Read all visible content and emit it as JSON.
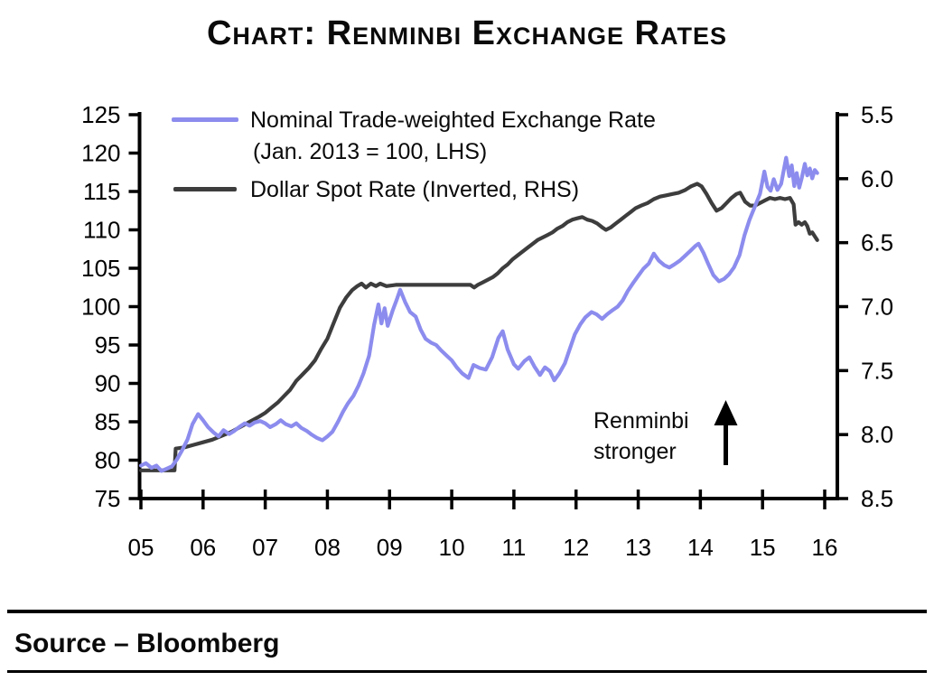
{
  "title": "Chart: Renminbi Exchange Rates",
  "legend": {
    "items": [
      {
        "label": "Nominal Trade-weighted Exchange Rate",
        "sublabel": "(Jan. 2013 = 100,  LHS)",
        "color": "#8c8cee"
      },
      {
        "label": "Dollar Spot Rate (Inverted, RHS)",
        "color": "#3d3d3d"
      }
    ]
  },
  "annotation": {
    "line1": "Renminbi",
    "line2": "stronger",
    "arrow": "up-arrow"
  },
  "source_label": "Source – Bloomberg",
  "chart_data": {
    "type": "line",
    "title": "Chart: Renminbi Exchange Rates",
    "x_axis": {
      "tick_labels": [
        "05",
        "06",
        "07",
        "08",
        "09",
        "10",
        "11",
        "12",
        "13",
        "14",
        "15",
        "16"
      ],
      "tick_values": [
        5,
        6,
        7,
        8,
        9,
        10,
        11,
        12,
        13,
        14,
        15,
        16
      ],
      "range": [
        5,
        16.2
      ]
    },
    "left_axis": {
      "tick_labels": [
        "125",
        "120",
        "115",
        "110",
        "105",
        "100",
        "95",
        "90",
        "85",
        "80",
        "75"
      ],
      "tick_values": [
        125,
        120,
        115,
        110,
        105,
        100,
        95,
        90,
        85,
        80,
        75
      ],
      "range": [
        75,
        125
      ]
    },
    "right_axis": {
      "tick_labels": [
        "5.5",
        "6.0",
        "6.5",
        "7.0",
        "7.5",
        "8.0",
        "8.5"
      ],
      "tick_values": [
        5.5,
        6.0,
        6.5,
        7.0,
        7.5,
        8.0,
        8.5
      ],
      "range": [
        5.5,
        8.5
      ],
      "inverted": true
    },
    "grid": false,
    "legend_position": "top-left-inside",
    "series": [
      {
        "name": "Dollar Spot Rate (Inverted, RHS)",
        "axis": "right",
        "color": "#3d3d3d",
        "points": [
          [
            5.0,
            8.28
          ],
          [
            5.54,
            8.28
          ],
          [
            5.56,
            8.11
          ],
          [
            5.7,
            8.1
          ],
          [
            5.85,
            8.08
          ],
          [
            6.0,
            8.06
          ],
          [
            6.15,
            8.04
          ],
          [
            6.3,
            8.01
          ],
          [
            6.45,
            7.98
          ],
          [
            6.6,
            7.94
          ],
          [
            6.75,
            7.9
          ],
          [
            6.9,
            7.86
          ],
          [
            7.0,
            7.83
          ],
          [
            7.1,
            7.79
          ],
          [
            7.2,
            7.75
          ],
          [
            7.3,
            7.7
          ],
          [
            7.4,
            7.65
          ],
          [
            7.5,
            7.58
          ],
          [
            7.6,
            7.53
          ],
          [
            7.7,
            7.48
          ],
          [
            7.8,
            7.42
          ],
          [
            7.9,
            7.33
          ],
          [
            8.0,
            7.25
          ],
          [
            8.1,
            7.13
          ],
          [
            8.2,
            7.01
          ],
          [
            8.3,
            6.93
          ],
          [
            8.4,
            6.87
          ],
          [
            8.48,
            6.84
          ],
          [
            8.55,
            6.82
          ],
          [
            8.62,
            6.85
          ],
          [
            8.7,
            6.82
          ],
          [
            8.78,
            6.84
          ],
          [
            8.85,
            6.82
          ],
          [
            8.95,
            6.84
          ],
          [
            9.1,
            6.83
          ],
          [
            9.5,
            6.83
          ],
          [
            10.0,
            6.83
          ],
          [
            10.3,
            6.83
          ],
          [
            10.36,
            6.85
          ],
          [
            10.42,
            6.83
          ],
          [
            10.5,
            6.81
          ],
          [
            10.58,
            6.79
          ],
          [
            10.66,
            6.77
          ],
          [
            10.74,
            6.74
          ],
          [
            10.82,
            6.7
          ],
          [
            10.9,
            6.67
          ],
          [
            10.98,
            6.63
          ],
          [
            11.06,
            6.6
          ],
          [
            11.14,
            6.57
          ],
          [
            11.22,
            6.54
          ],
          [
            11.3,
            6.51
          ],
          [
            11.38,
            6.48
          ],
          [
            11.46,
            6.46
          ],
          [
            11.54,
            6.44
          ],
          [
            11.62,
            6.42
          ],
          [
            11.7,
            6.39
          ],
          [
            11.78,
            6.37
          ],
          [
            11.86,
            6.34
          ],
          [
            11.94,
            6.32
          ],
          [
            12.02,
            6.31
          ],
          [
            12.1,
            6.3
          ],
          [
            12.18,
            6.32
          ],
          [
            12.26,
            6.33
          ],
          [
            12.34,
            6.35
          ],
          [
            12.42,
            6.38
          ],
          [
            12.48,
            6.4
          ],
          [
            12.56,
            6.38
          ],
          [
            12.64,
            6.35
          ],
          [
            12.72,
            6.32
          ],
          [
            12.8,
            6.29
          ],
          [
            12.88,
            6.26
          ],
          [
            12.96,
            6.23
          ],
          [
            13.05,
            6.21
          ],
          [
            13.15,
            6.19
          ],
          [
            13.25,
            6.16
          ],
          [
            13.35,
            6.14
          ],
          [
            13.45,
            6.13
          ],
          [
            13.55,
            6.12
          ],
          [
            13.65,
            6.11
          ],
          [
            13.75,
            6.09
          ],
          [
            13.85,
            6.06
          ],
          [
            13.95,
            6.04
          ],
          [
            14.02,
            6.06
          ],
          [
            14.1,
            6.12
          ],
          [
            14.18,
            6.19
          ],
          [
            14.26,
            6.25
          ],
          [
            14.34,
            6.23
          ],
          [
            14.42,
            6.19
          ],
          [
            14.5,
            6.15
          ],
          [
            14.58,
            6.12
          ],
          [
            14.64,
            6.11
          ],
          [
            14.72,
            6.18
          ],
          [
            14.8,
            6.21
          ],
          [
            14.88,
            6.21
          ],
          [
            14.96,
            6.19
          ],
          [
            15.04,
            6.17
          ],
          [
            15.12,
            6.15
          ],
          [
            15.2,
            6.16
          ],
          [
            15.28,
            6.15
          ],
          [
            15.36,
            6.16
          ],
          [
            15.44,
            6.15
          ],
          [
            15.5,
            6.2
          ],
          [
            15.53,
            6.36
          ],
          [
            15.58,
            6.34
          ],
          [
            15.63,
            6.36
          ],
          [
            15.68,
            6.34
          ],
          [
            15.72,
            6.37
          ],
          [
            15.76,
            6.43
          ],
          [
            15.8,
            6.42
          ],
          [
            15.84,
            6.45
          ],
          [
            15.88,
            6.48
          ]
        ]
      },
      {
        "name": "Nominal Trade-weighted Exchange Rate (Jan. 2013 = 100, LHS)",
        "axis": "left",
        "color": "#8c8cee",
        "points": [
          [
            5.0,
            79.3
          ],
          [
            5.08,
            79.6
          ],
          [
            5.17,
            79.0
          ],
          [
            5.25,
            79.3
          ],
          [
            5.33,
            78.6
          ],
          [
            5.42,
            78.9
          ],
          [
            5.5,
            79.2
          ],
          [
            5.58,
            80.1
          ],
          [
            5.67,
            81.4
          ],
          [
            5.75,
            82.7
          ],
          [
            5.83,
            84.7
          ],
          [
            5.92,
            86.0
          ],
          [
            6.0,
            85.2
          ],
          [
            6.08,
            84.3
          ],
          [
            6.17,
            83.6
          ],
          [
            6.25,
            83.1
          ],
          [
            6.33,
            83.9
          ],
          [
            6.42,
            83.4
          ],
          [
            6.5,
            83.8
          ],
          [
            6.58,
            84.3
          ],
          [
            6.67,
            84.8
          ],
          [
            6.75,
            84.5
          ],
          [
            6.83,
            84.9
          ],
          [
            6.92,
            85.1
          ],
          [
            7.0,
            84.8
          ],
          [
            7.08,
            84.3
          ],
          [
            7.17,
            84.7
          ],
          [
            7.25,
            85.2
          ],
          [
            7.33,
            84.7
          ],
          [
            7.42,
            84.4
          ],
          [
            7.5,
            84.8
          ],
          [
            7.58,
            84.2
          ],
          [
            7.67,
            83.8
          ],
          [
            7.75,
            83.3
          ],
          [
            7.83,
            82.9
          ],
          [
            7.92,
            82.6
          ],
          [
            8.0,
            83.1
          ],
          [
            8.08,
            83.7
          ],
          [
            8.17,
            85.0
          ],
          [
            8.25,
            86.3
          ],
          [
            8.33,
            87.4
          ],
          [
            8.42,
            88.4
          ],
          [
            8.5,
            89.7
          ],
          [
            8.58,
            91.3
          ],
          [
            8.67,
            93.6
          ],
          [
            8.75,
            97.6
          ],
          [
            8.82,
            100.3
          ],
          [
            8.87,
            97.8
          ],
          [
            8.92,
            99.8
          ],
          [
            8.97,
            97.5
          ],
          [
            9.05,
            99.5
          ],
          [
            9.12,
            101.0
          ],
          [
            9.17,
            102.2
          ],
          [
            9.25,
            100.6
          ],
          [
            9.33,
            99.3
          ],
          [
            9.42,
            98.7
          ],
          [
            9.5,
            97.0
          ],
          [
            9.58,
            95.8
          ],
          [
            9.67,
            95.3
          ],
          [
            9.75,
            95.0
          ],
          [
            9.83,
            94.3
          ],
          [
            9.92,
            93.6
          ],
          [
            10.0,
            93.0
          ],
          [
            10.08,
            92.1
          ],
          [
            10.17,
            91.3
          ],
          [
            10.27,
            90.7
          ],
          [
            10.35,
            92.4
          ],
          [
            10.45,
            92.0
          ],
          [
            10.55,
            91.8
          ],
          [
            10.65,
            93.4
          ],
          [
            10.75,
            95.9
          ],
          [
            10.82,
            96.8
          ],
          [
            10.9,
            94.4
          ],
          [
            11.0,
            92.5
          ],
          [
            11.07,
            91.9
          ],
          [
            11.17,
            92.9
          ],
          [
            11.25,
            93.4
          ],
          [
            11.33,
            92.2
          ],
          [
            11.42,
            91.1
          ],
          [
            11.5,
            92.1
          ],
          [
            11.58,
            91.6
          ],
          [
            11.65,
            90.4
          ],
          [
            11.73,
            91.3
          ],
          [
            11.82,
            92.6
          ],
          [
            11.9,
            94.5
          ],
          [
            11.98,
            96.4
          ],
          [
            12.07,
            97.7
          ],
          [
            12.15,
            98.6
          ],
          [
            12.25,
            99.3
          ],
          [
            12.33,
            99.0
          ],
          [
            12.42,
            98.4
          ],
          [
            12.5,
            99.0
          ],
          [
            12.58,
            99.5
          ],
          [
            12.67,
            100.0
          ],
          [
            12.75,
            100.8
          ],
          [
            12.83,
            102.0
          ],
          [
            12.92,
            103.1
          ],
          [
            13.0,
            104.0
          ],
          [
            13.08,
            104.9
          ],
          [
            13.17,
            105.6
          ],
          [
            13.25,
            106.9
          ],
          [
            13.33,
            106.0
          ],
          [
            13.42,
            105.4
          ],
          [
            13.5,
            105.1
          ],
          [
            13.58,
            105.5
          ],
          [
            13.67,
            106.0
          ],
          [
            13.75,
            106.6
          ],
          [
            13.83,
            107.2
          ],
          [
            13.92,
            107.9
          ],
          [
            13.97,
            108.2
          ],
          [
            14.05,
            107.0
          ],
          [
            14.13,
            105.5
          ],
          [
            14.21,
            104.1
          ],
          [
            14.3,
            103.3
          ],
          [
            14.38,
            103.6
          ],
          [
            14.46,
            104.2
          ],
          [
            14.54,
            105.1
          ],
          [
            14.63,
            106.7
          ],
          [
            14.71,
            109.3
          ],
          [
            14.79,
            111.3
          ],
          [
            14.88,
            113.1
          ],
          [
            14.96,
            114.7
          ],
          [
            15.03,
            117.6
          ],
          [
            15.08,
            115.6
          ],
          [
            15.13,
            115.1
          ],
          [
            15.18,
            116.6
          ],
          [
            15.24,
            115.2
          ],
          [
            15.3,
            116.0
          ],
          [
            15.38,
            119.4
          ],
          [
            15.43,
            117.0
          ],
          [
            15.47,
            118.4
          ],
          [
            15.51,
            115.7
          ],
          [
            15.55,
            117.4
          ],
          [
            15.59,
            115.5
          ],
          [
            15.63,
            116.7
          ],
          [
            15.68,
            118.6
          ],
          [
            15.72,
            117.1
          ],
          [
            15.76,
            118.0
          ],
          [
            15.8,
            116.7
          ],
          [
            15.84,
            117.8
          ],
          [
            15.88,
            117.4
          ]
        ]
      }
    ],
    "annotations": [
      {
        "text": "Renminbi stronger",
        "type": "text-with-up-arrow"
      }
    ]
  }
}
